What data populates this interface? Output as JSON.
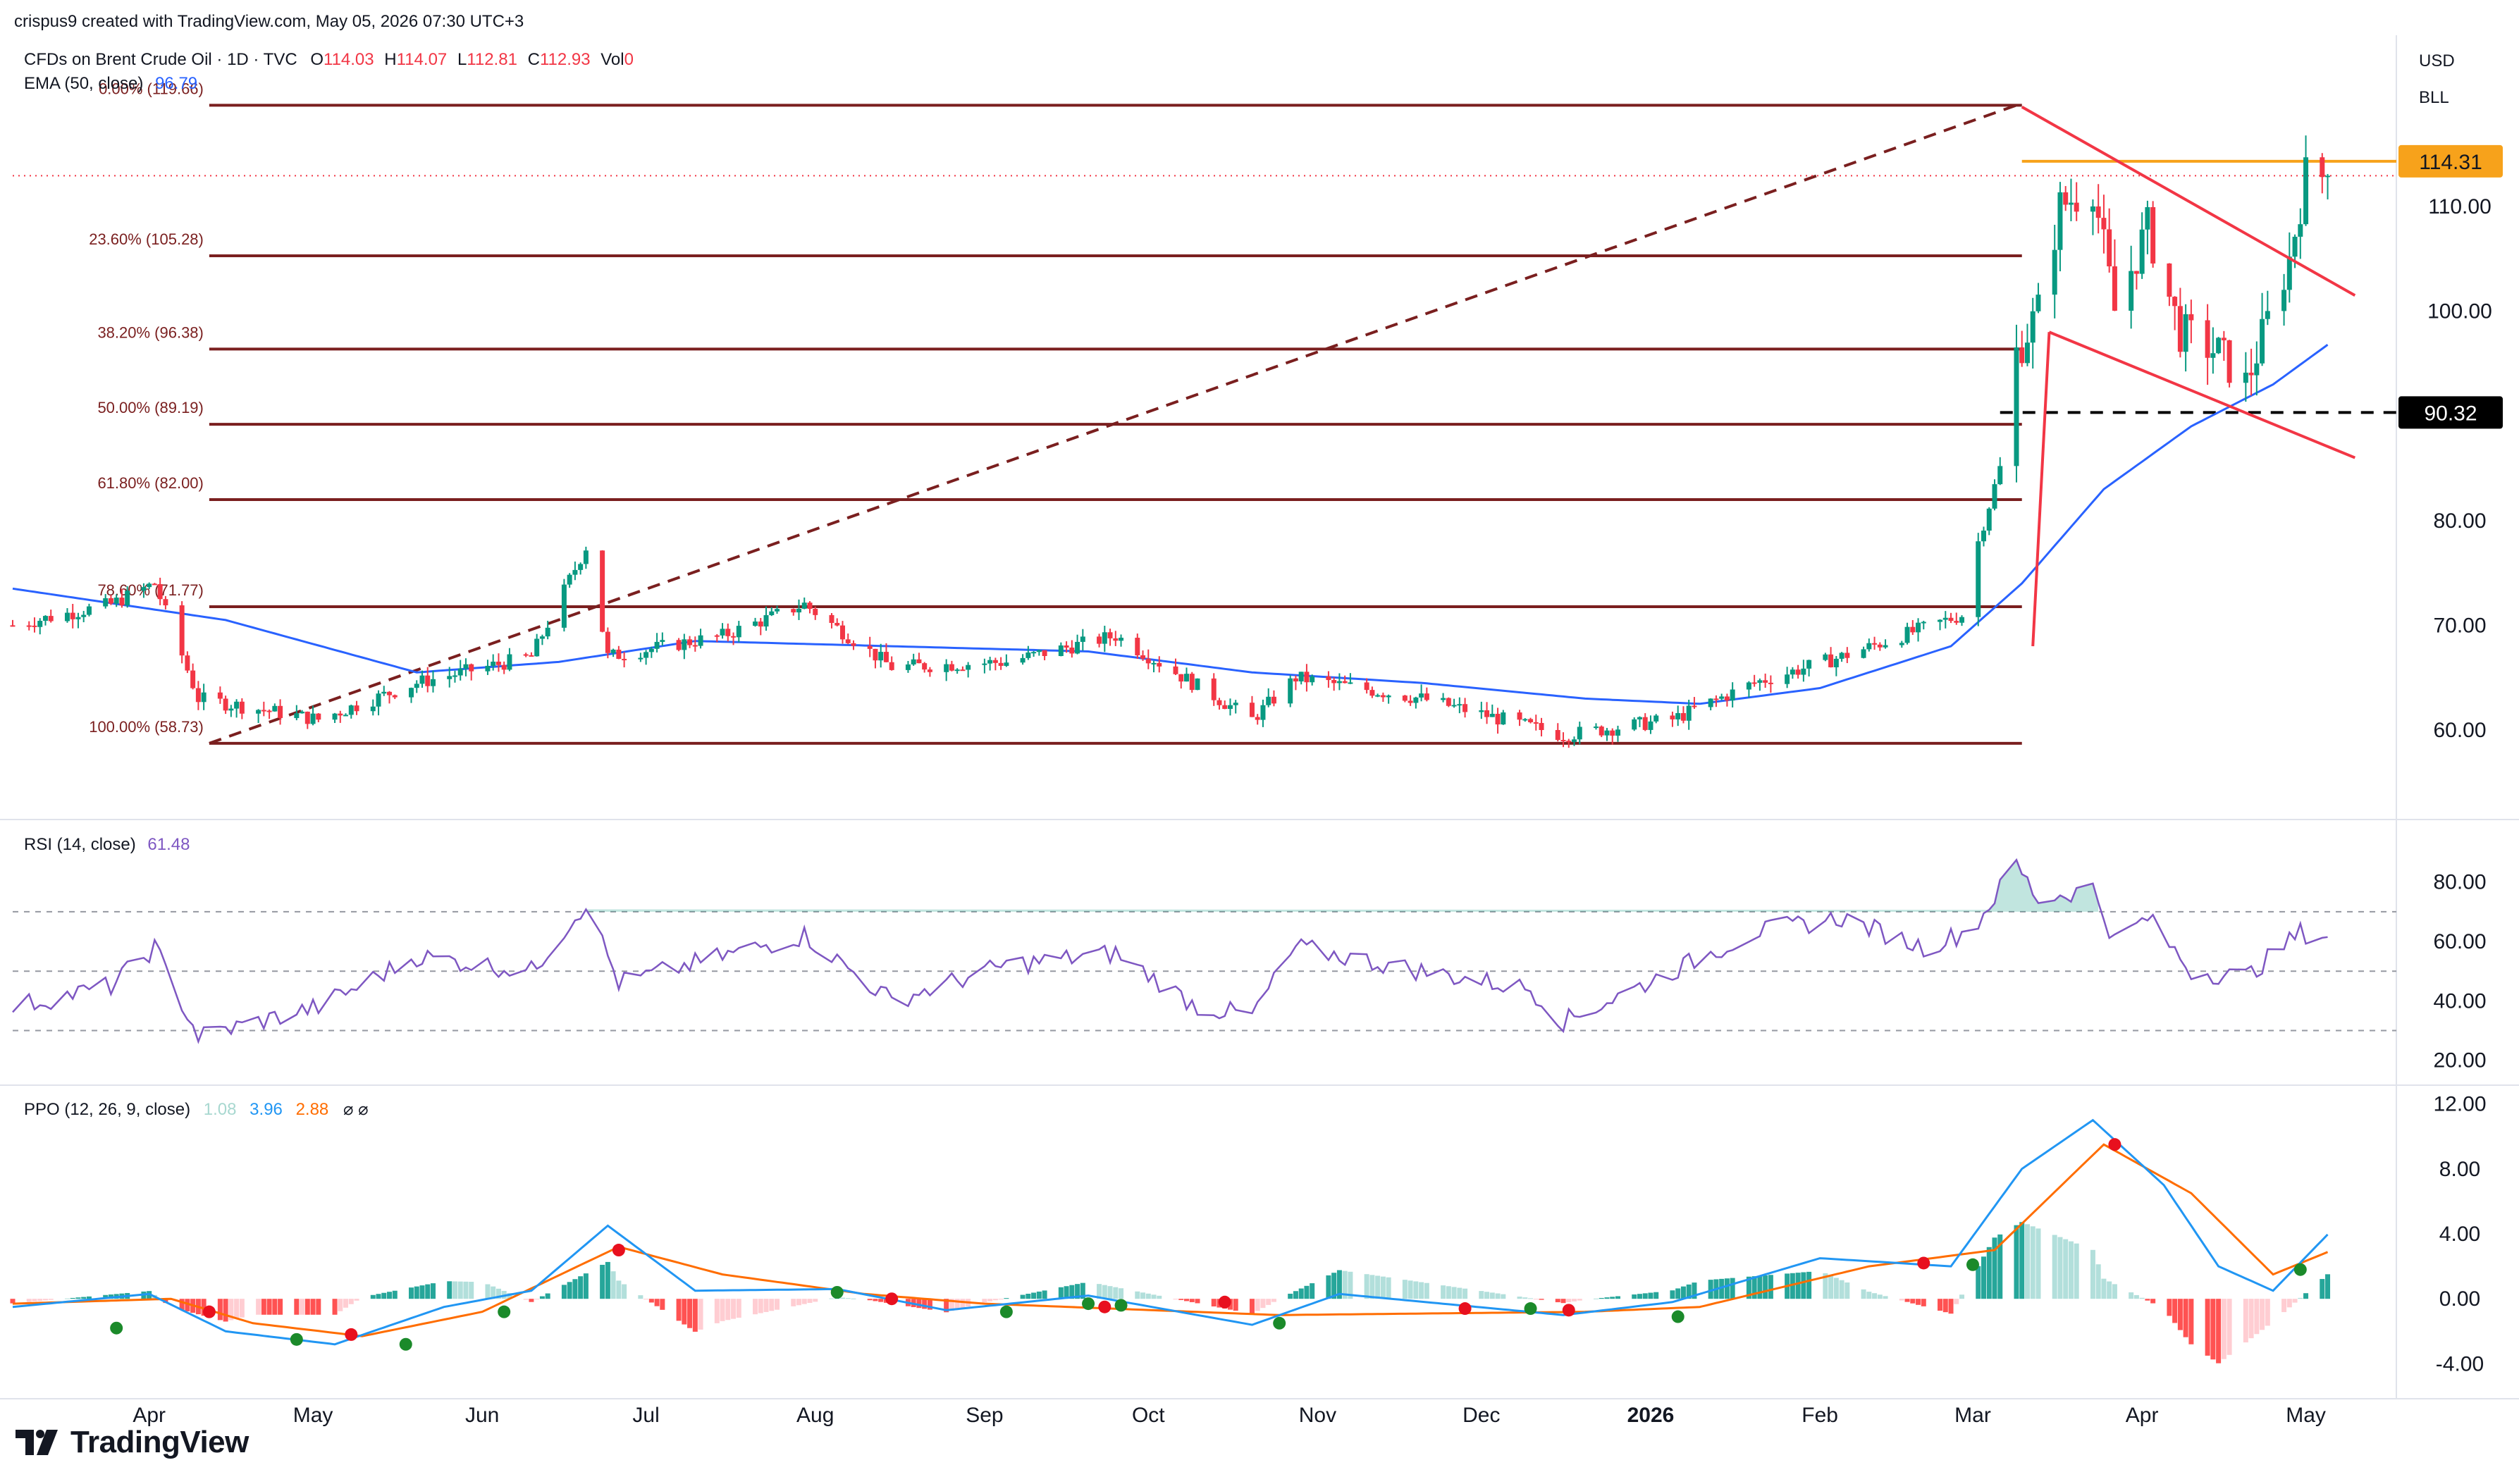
{
  "header": {
    "credit": "crispus9 created with TradingView.com, May 05, 2026 07:30 UTC+3",
    "symbol": "CFDs on Brent Crude Oil · 1D · TVC",
    "ohlc": [
      {
        "k": "O",
        "v": "114.03"
      },
      {
        "k": "H",
        "v": "114.07"
      },
      {
        "k": "L",
        "v": "112.81"
      },
      {
        "k": "C",
        "v": "112.93"
      },
      {
        "k": "Vol",
        "v": "0"
      }
    ],
    "ema_label": "EMA (50, close)",
    "ema_value": "96.79",
    "currency": "USD",
    "unit": "BLL"
  },
  "colors": {
    "up": "#089981",
    "down": "#f23645",
    "ema": "#2962ff",
    "fib": "#7a1f1f",
    "resistance": "#f7a21b",
    "channel": "#f23645",
    "rsi": "#7e57c2",
    "ppo": "#2196f3",
    "ppo_signal": "#ff6d00"
  },
  "chart_data": [
    {
      "type": "candlestick",
      "panel": "price",
      "y_ticks": [
        "110.00",
        "100.00",
        "90.00",
        "80.00",
        "70.00",
        "60.00"
      ],
      "ylim": [
        53,
        125
      ],
      "x_ticks": [
        "Apr",
        "May",
        "Jun",
        "Jul",
        "Aug",
        "Sep",
        "Oct",
        "Nov",
        "Dec",
        "2026",
        "Feb",
        "Mar",
        "Apr",
        "May"
      ],
      "x_range": [
        "2025-03-07",
        "2026-05-15"
      ],
      "key_closes": [
        {
          "date": "2025-03-07",
          "close": 70
        },
        {
          "date": "2025-03-25",
          "close": 72
        },
        {
          "date": "2025-04-02",
          "close": 74
        },
        {
          "date": "2025-04-10",
          "close": 63
        },
        {
          "date": "2025-05-02",
          "close": 61
        },
        {
          "date": "2025-05-20",
          "close": 64.5
        },
        {
          "date": "2025-06-10",
          "close": 67
        },
        {
          "date": "2025-06-20",
          "close": 77.5
        },
        {
          "date": "2025-06-24",
          "close": 67
        },
        {
          "date": "2025-07-15",
          "close": 69
        },
        {
          "date": "2025-07-30",
          "close": 72
        },
        {
          "date": "2025-08-15",
          "close": 66
        },
        {
          "date": "2025-09-05",
          "close": 66.5
        },
        {
          "date": "2025-09-25",
          "close": 69
        },
        {
          "date": "2025-10-20",
          "close": 61
        },
        {
          "date": "2025-10-28",
          "close": 65
        },
        {
          "date": "2025-11-20",
          "close": 63
        },
        {
          "date": "2025-12-16",
          "close": 59.5
        },
        {
          "date": "2026-01-05",
          "close": 61
        },
        {
          "date": "2026-01-20",
          "close": 64.5
        },
        {
          "date": "2026-02-05",
          "close": 67
        },
        {
          "date": "2026-02-27",
          "close": 71
        },
        {
          "date": "2026-03-02",
          "close": 78
        },
        {
          "date": "2026-03-06",
          "close": 85
        },
        {
          "date": "2026-03-09",
          "close": 96
        },
        {
          "date": "2026-03-13",
          "close": 100
        },
        {
          "date": "2026-03-17",
          "close": 110
        },
        {
          "date": "2026-03-23",
          "close": 112
        },
        {
          "date": "2026-03-27",
          "close": 100
        },
        {
          "date": "2026-04-02",
          "close": 108
        },
        {
          "date": "2026-04-08",
          "close": 98
        },
        {
          "date": "2026-04-15",
          "close": 96
        },
        {
          "date": "2026-04-20",
          "close": 93
        },
        {
          "date": "2026-04-24",
          "close": 99
        },
        {
          "date": "2026-04-28",
          "close": 105
        },
        {
          "date": "2026-05-01",
          "close": 113
        },
        {
          "date": "2026-05-05",
          "close": 112.93
        }
      ],
      "ema": [
        {
          "date": "2025-03-07",
          "value": 73.5
        },
        {
          "date": "2025-04-15",
          "value": 70.5
        },
        {
          "date": "2025-05-20",
          "value": 65.5
        },
        {
          "date": "2025-06-15",
          "value": 66.5
        },
        {
          "date": "2025-07-10",
          "value": 68.5
        },
        {
          "date": "2025-08-15",
          "value": 68
        },
        {
          "date": "2025-09-20",
          "value": 67.5
        },
        {
          "date": "2025-10-20",
          "value": 65.5
        },
        {
          "date": "2025-11-20",
          "value": 64.5
        },
        {
          "date": "2025-12-20",
          "value": 63
        },
        {
          "date": "2026-01-10",
          "value": 62.5
        },
        {
          "date": "2026-02-01",
          "value": 64
        },
        {
          "date": "2026-02-25",
          "value": 68
        },
        {
          "date": "2026-03-10",
          "value": 74
        },
        {
          "date": "2026-03-25",
          "value": 83
        },
        {
          "date": "2026-04-10",
          "value": 89
        },
        {
          "date": "2026-04-25",
          "value": 93
        },
        {
          "date": "2026-05-05",
          "value": 96.79
        }
      ],
      "fibonacci": [
        {
          "level": "0.00%",
          "price": "119.66"
        },
        {
          "level": "23.60%",
          "price": "105.28"
        },
        {
          "level": "38.20%",
          "price": "96.38"
        },
        {
          "level": "50.00%",
          "price": "89.19"
        },
        {
          "level": "61.80%",
          "price": "82.00"
        },
        {
          "level": "78.60%",
          "price": "71.77"
        },
        {
          "level": "100.00%",
          "price": "58.73"
        }
      ],
      "fib_trend": {
        "from": [
          "2025-04-12",
          58.73
        ],
        "to": [
          "2026-03-09",
          119.66
        ]
      },
      "fib_span": [
        "2025-04-12",
        "2026-03-10"
      ],
      "channel": {
        "upper": [
          [
            "2026-03-10",
            119.5
          ],
          [
            "2026-05-10",
            101.5
          ]
        ],
        "lower": [
          [
            "2026-03-15",
            98
          ],
          [
            "2026-05-10",
            86
          ]
        ],
        "pole": [
          [
            "2026-03-12",
            68
          ],
          [
            "2026-03-15",
            98
          ]
        ]
      },
      "resistance": {
        "value": "114.31",
        "from": "2026-03-10"
      },
      "support": {
        "value": "90.32",
        "from": "2026-03-06"
      },
      "last_price": 112.93
    },
    {
      "type": "line",
      "panel": "rsi",
      "label": "RSI (14, close)",
      "value": "61.48",
      "y_ticks": [
        "80.00",
        "60.00",
        "40.00",
        "20.00"
      ],
      "ylim": [
        14,
        97
      ],
      "bands": [
        70,
        50,
        30
      ],
      "points": [
        {
          "date": "2025-03-07",
          "value": 38
        },
        {
          "date": "2025-03-25",
          "value": 45
        },
        {
          "date": "2025-04-02",
          "value": 58
        },
        {
          "date": "2025-04-10",
          "value": 28
        },
        {
          "date": "2025-05-02",
          "value": 38
        },
        {
          "date": "2025-05-20",
          "value": 55
        },
        {
          "date": "2025-06-10",
          "value": 50
        },
        {
          "date": "2025-06-20",
          "value": 73
        },
        {
          "date": "2025-06-26",
          "value": 46
        },
        {
          "date": "2025-07-15",
          "value": 55
        },
        {
          "date": "2025-07-30",
          "value": 62
        },
        {
          "date": "2025-08-15",
          "value": 40
        },
        {
          "date": "2025-09-05",
          "value": 52
        },
        {
          "date": "2025-09-25",
          "value": 56
        },
        {
          "date": "2025-10-10",
          "value": 38
        },
        {
          "date": "2025-10-20",
          "value": 35
        },
        {
          "date": "2025-10-28",
          "value": 58
        },
        {
          "date": "2025-11-20",
          "value": 50
        },
        {
          "date": "2025-12-10",
          "value": 44
        },
        {
          "date": "2025-12-16",
          "value": 33
        },
        {
          "date": "2026-01-05",
          "value": 50
        },
        {
          "date": "2026-01-20",
          "value": 63
        },
        {
          "date": "2026-02-05",
          "value": 68
        },
        {
          "date": "2026-02-20",
          "value": 58
        },
        {
          "date": "2026-03-01",
          "value": 64
        },
        {
          "date": "2026-03-09",
          "value": 86
        },
        {
          "date": "2026-03-13",
          "value": 74
        },
        {
          "date": "2026-03-23",
          "value": 78
        },
        {
          "date": "2026-03-27",
          "value": 60
        },
        {
          "date": "2026-04-02",
          "value": 68
        },
        {
          "date": "2026-04-10",
          "value": 50
        },
        {
          "date": "2026-04-20",
          "value": 48
        },
        {
          "date": "2026-04-30",
          "value": 63
        },
        {
          "date": "2026-05-05",
          "value": 61.48
        }
      ]
    },
    {
      "type": "line",
      "panel": "ppo",
      "label": "PPO (12, 26, 9, close)",
      "values_display": [
        "1.08",
        "3.96",
        "2.88"
      ],
      "y_ticks": [
        "12.00",
        "8.00",
        "4.00",
        "0.00",
        "-4.00"
      ],
      "ylim": [
        -5.5,
        12.5
      ],
      "series": [
        {
          "role": "ppo",
          "points": [
            {
              "date": "2025-03-07",
              "value": -0.5
            },
            {
              "date": "2025-04-01",
              "value": 0.3
            },
            {
              "date": "2025-04-15",
              "value": -2.0
            },
            {
              "date": "2025-05-05",
              "value": -2.8
            },
            {
              "date": "2025-05-25",
              "value": -0.5
            },
            {
              "date": "2025-06-10",
              "value": 0.5
            },
            {
              "date": "2025-06-24",
              "value": 4.5
            },
            {
              "date": "2025-07-10",
              "value": 0.5
            },
            {
              "date": "2025-08-05",
              "value": 0.6
            },
            {
              "date": "2025-08-25",
              "value": -0.7
            },
            {
              "date": "2025-09-20",
              "value": 0.2
            },
            {
              "date": "2025-10-20",
              "value": -1.6
            },
            {
              "date": "2025-11-05",
              "value": 0.3
            },
            {
              "date": "2025-12-16",
              "value": -1.0
            },
            {
              "date": "2026-01-05",
              "value": -0.2
            },
            {
              "date": "2026-02-01",
              "value": 2.5
            },
            {
              "date": "2026-02-25",
              "value": 2.0
            },
            {
              "date": "2026-03-10",
              "value": 8.0
            },
            {
              "date": "2026-03-23",
              "value": 11.0
            },
            {
              "date": "2026-04-05",
              "value": 7.0
            },
            {
              "date": "2026-04-15",
              "value": 2.0
            },
            {
              "date": "2026-04-25",
              "value": 0.5
            },
            {
              "date": "2026-05-05",
              "value": 3.96
            }
          ]
        },
        {
          "role": "signal",
          "points": [
            {
              "date": "2025-03-07",
              "value": -0.3
            },
            {
              "date": "2025-04-05",
              "value": 0.0
            },
            {
              "date": "2025-04-20",
              "value": -1.5
            },
            {
              "date": "2025-05-10",
              "value": -2.3
            },
            {
              "date": "2025-06-01",
              "value": -0.8
            },
            {
              "date": "2025-06-26",
              "value": 3.2
            },
            {
              "date": "2025-07-15",
              "value": 1.5
            },
            {
              "date": "2025-08-10",
              "value": 0.3
            },
            {
              "date": "2025-09-01",
              "value": -0.3
            },
            {
              "date": "2025-10-25",
              "value": -1.0
            },
            {
              "date": "2025-12-20",
              "value": -0.8
            },
            {
              "date": "2026-01-10",
              "value": -0.5
            },
            {
              "date": "2026-02-10",
              "value": 2.0
            },
            {
              "date": "2026-03-05",
              "value": 3.0
            },
            {
              "date": "2026-03-25",
              "value": 9.5
            },
            {
              "date": "2026-04-10",
              "value": 6.5
            },
            {
              "date": "2026-04-25",
              "value": 1.5
            },
            {
              "date": "2026-05-05",
              "value": 2.88
            }
          ]
        }
      ],
      "crosses": [
        {
          "date": "2025-03-26",
          "value": -1.8,
          "dir": "up"
        },
        {
          "date": "2025-04-12",
          "value": -0.8,
          "dir": "down"
        },
        {
          "date": "2025-04-28",
          "value": -2.5,
          "dir": "up"
        },
        {
          "date": "2025-05-08",
          "value": -2.2,
          "dir": "down"
        },
        {
          "date": "2025-05-18",
          "value": -2.8,
          "dir": "up"
        },
        {
          "date": "2025-06-05",
          "value": -0.8,
          "dir": "up"
        },
        {
          "date": "2025-06-26",
          "value": 3.0,
          "dir": "down"
        },
        {
          "date": "2025-08-05",
          "value": 0.4,
          "dir": "up"
        },
        {
          "date": "2025-08-15",
          "value": 0.0,
          "dir": "down"
        },
        {
          "date": "2025-09-05",
          "value": -0.8,
          "dir": "up"
        },
        {
          "date": "2025-09-20",
          "value": -0.3,
          "dir": "up"
        },
        {
          "date": "2025-09-23",
          "value": -0.5,
          "dir": "down"
        },
        {
          "date": "2025-09-26",
          "value": -0.4,
          "dir": "up"
        },
        {
          "date": "2025-10-15",
          "value": -0.2,
          "dir": "down"
        },
        {
          "date": "2025-10-25",
          "value": -1.5,
          "dir": "up"
        },
        {
          "date": "2025-11-28",
          "value": -0.6,
          "dir": "down"
        },
        {
          "date": "2025-12-10",
          "value": -0.6,
          "dir": "up"
        },
        {
          "date": "2025-12-17",
          "value": -0.7,
          "dir": "down"
        },
        {
          "date": "2026-01-06",
          "value": -1.1,
          "dir": "up"
        },
        {
          "date": "2026-02-20",
          "value": 2.2,
          "dir": "down"
        },
        {
          "date": "2026-03-01",
          "value": 2.1,
          "dir": "up"
        },
        {
          "date": "2026-03-27",
          "value": 9.5,
          "dir": "down"
        },
        {
          "date": "2026-04-30",
          "value": 1.8,
          "dir": "up"
        }
      ]
    }
  ],
  "brand": {
    "name": "TradingView"
  }
}
